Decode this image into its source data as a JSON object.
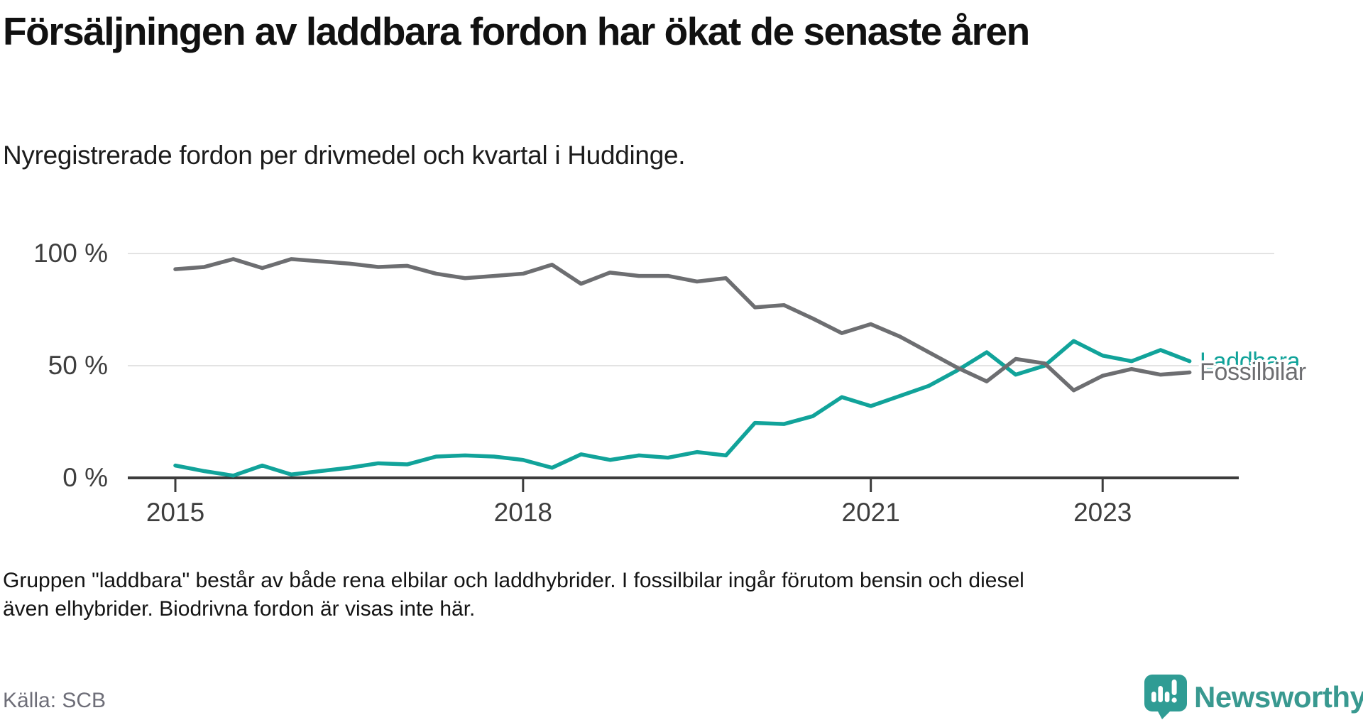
{
  "header": {
    "title": "Försäljningen av laddbara fordon har ökat de senaste åren",
    "subtitle": "Nyregistrerade fordon per drivmedel och kvartal i Huddinge."
  },
  "chart_data": {
    "type": "line",
    "quarters": [
      "2015 Q1",
      "2015 Q2",
      "2015 Q3",
      "2015 Q4",
      "2016 Q1",
      "2016 Q2",
      "2016 Q3",
      "2016 Q4",
      "2017 Q1",
      "2017 Q2",
      "2017 Q3",
      "2017 Q4",
      "2018 Q1",
      "2018 Q2",
      "2018 Q3",
      "2018 Q4",
      "2019 Q1",
      "2019 Q2",
      "2019 Q3",
      "2019 Q4",
      "2020 Q1",
      "2020 Q2",
      "2020 Q3",
      "2020 Q4",
      "2021 Q1",
      "2021 Q2",
      "2021 Q3",
      "2021 Q4",
      "2022 Q1",
      "2022 Q2",
      "2022 Q3",
      "2022 Q4",
      "2023 Q1",
      "2023 Q2",
      "2023 Q3",
      "2023 Q4"
    ],
    "series": [
      {
        "id": "laddbara",
        "name": "Laddbara",
        "color": "#11a39a",
        "values": [
          5.5,
          3,
          1,
          5.5,
          1.5,
          3,
          4.5,
          6.5,
          6,
          9.5,
          10,
          9.5,
          8,
          4.5,
          10.5,
          8,
          10,
          9,
          11.5,
          10,
          24.5,
          24,
          27.5,
          36,
          32,
          36.5,
          41,
          48,
          56,
          46,
          50,
          61,
          54.5,
          52,
          57,
          52
        ]
      },
      {
        "id": "fossilbilar",
        "name": "Fossilbilar",
        "color": "#6d6e71",
        "values": [
          93,
          94,
          97.5,
          93.5,
          97.5,
          96.5,
          95.5,
          94,
          94.5,
          91,
          89,
          90,
          91,
          95,
          86.5,
          91.5,
          90,
          90,
          87.5,
          89,
          76,
          77,
          71,
          64.5,
          68.5,
          63,
          56,
          49,
          43,
          53,
          51,
          39,
          45.5,
          48.5,
          46,
          47
        ]
      }
    ],
    "x_ticks": [
      {
        "label": "2015",
        "index": 0
      },
      {
        "label": "2018",
        "index": 12
      },
      {
        "label": "2021",
        "index": 24
      },
      {
        "label": "2023",
        "index": 32
      }
    ],
    "y_ticks": [
      {
        "label": "0 %",
        "value": 0
      },
      {
        "label": "50 %",
        "value": 50
      },
      {
        "label": "100 %",
        "value": 100
      }
    ],
    "ylim": [
      0,
      100
    ],
    "grid": "horizontal",
    "grid_color": "#e3e3e3",
    "axis_color": "#3c3c3c",
    "legend_position": "inline-right"
  },
  "footnote": "Gruppen \"laddbara\" består av både rena elbilar och laddhybrider. I fossilbilar ingår förutom bensin och diesel även elhybrider. Biodrivna fordon är visas inte här.",
  "source": "Källa: SCB",
  "branding": {
    "wordmark": "Newsworthy",
    "bubble_color": "#2f9c94",
    "wordmark_color": "#399990"
  }
}
